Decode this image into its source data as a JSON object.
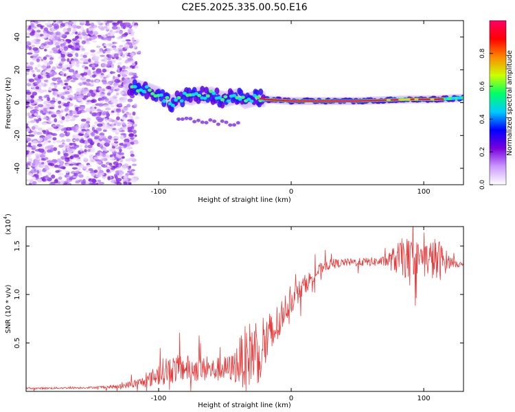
{
  "title": "C2E5.2025.335.00.50.E16",
  "chart_data": [
    {
      "type": "heatmap",
      "name": "spectrogram",
      "xlabel": "Height of straight line (km)",
      "ylabel": "Frequency (Hz)",
      "xlim": [
        -200,
        130
      ],
      "ylim": [
        -50,
        50
      ],
      "xticks": [
        -100,
        0,
        100
      ],
      "yticks": [
        -40,
        -20,
        0,
        20,
        40
      ],
      "ridge": [
        {
          "x": -120,
          "y": 10
        },
        {
          "x": -110,
          "y": 8
        },
        {
          "x": -100,
          "y": 5
        },
        {
          "x": -95,
          "y": 2
        },
        {
          "x": -90,
          "y": 0
        },
        {
          "x": -85,
          "y": 2
        },
        {
          "x": -80,
          "y": 4
        },
        {
          "x": -75,
          "y": 3
        },
        {
          "x": -70,
          "y": 5
        },
        {
          "x": -65,
          "y": 4
        },
        {
          "x": -60,
          "y": 5
        },
        {
          "x": -55,
          "y": 3
        },
        {
          "x": -50,
          "y": 2
        },
        {
          "x": -45,
          "y": 3
        },
        {
          "x": -40,
          "y": 4
        },
        {
          "x": -35,
          "y": 1
        },
        {
          "x": -30,
          "y": 2
        },
        {
          "x": -25,
          "y": 3
        },
        {
          "x": -20,
          "y": 2
        },
        {
          "x": 0,
          "y": 1
        },
        {
          "x": 50,
          "y": 1
        },
        {
          "x": 90,
          "y": 2
        },
        {
          "x": 110,
          "y": 2
        },
        {
          "x": 130,
          "y": 3
        }
      ],
      "colorbar": {
        "label": "Normalized spectral amplitude",
        "range": [
          0,
          1
        ],
        "ticks": [
          0.0,
          0.2,
          0.4,
          0.6,
          0.8
        ],
        "colors": [
          "#ffffff",
          "#cc99ff",
          "#7700dd",
          "#0000ff",
          "#00ccff",
          "#00ff66",
          "#ccff00",
          "#ff8800",
          "#ff0000",
          "#ff0066"
        ]
      }
    },
    {
      "type": "line",
      "name": "snr",
      "xlabel": "Height of straight line (km)",
      "ylabel": "SNR (10 * v/v)",
      "yscale_label": "(x10",
      "yscale_exp": "4",
      "xlim": [
        -200,
        130
      ],
      "ylim": [
        0,
        1.7
      ],
      "xticks": [
        -100,
        0,
        100
      ],
      "yticks": [
        0.5,
        1.0,
        1.5
      ],
      "line_color": "#e83a3a",
      "envelope": [
        {
          "x": -200,
          "mean": 0.03,
          "noise": 0.01
        },
        {
          "x": -150,
          "mean": 0.04,
          "noise": 0.01
        },
        {
          "x": -130,
          "mean": 0.05,
          "noise": 0.02
        },
        {
          "x": -110,
          "mean": 0.1,
          "noise": 0.06
        },
        {
          "x": -95,
          "mean": 0.22,
          "noise": 0.15
        },
        {
          "x": -80,
          "mean": 0.24,
          "noise": 0.14
        },
        {
          "x": -60,
          "mean": 0.22,
          "noise": 0.12
        },
        {
          "x": -45,
          "mean": 0.24,
          "noise": 0.14
        },
        {
          "x": -35,
          "mean": 0.35,
          "noise": 0.32
        },
        {
          "x": -25,
          "mean": 0.45,
          "noise": 0.38
        },
        {
          "x": -15,
          "mean": 0.55,
          "noise": 0.28
        },
        {
          "x": -5,
          "mean": 0.85,
          "noise": 0.15
        },
        {
          "x": 10,
          "mean": 1.1,
          "noise": 0.1
        },
        {
          "x": 25,
          "mean": 1.3,
          "noise": 0.06
        },
        {
          "x": 40,
          "mean": 1.33,
          "noise": 0.04
        },
        {
          "x": 70,
          "mean": 1.34,
          "noise": 0.05
        },
        {
          "x": 85,
          "mean": 1.38,
          "noise": 0.22
        },
        {
          "x": 100,
          "mean": 1.38,
          "noise": 0.15
        },
        {
          "x": 110,
          "mean": 1.35,
          "noise": 0.25
        },
        {
          "x": 120,
          "mean": 1.34,
          "noise": 0.06
        },
        {
          "x": 130,
          "mean": 1.3,
          "noise": 0.02
        }
      ]
    }
  ]
}
